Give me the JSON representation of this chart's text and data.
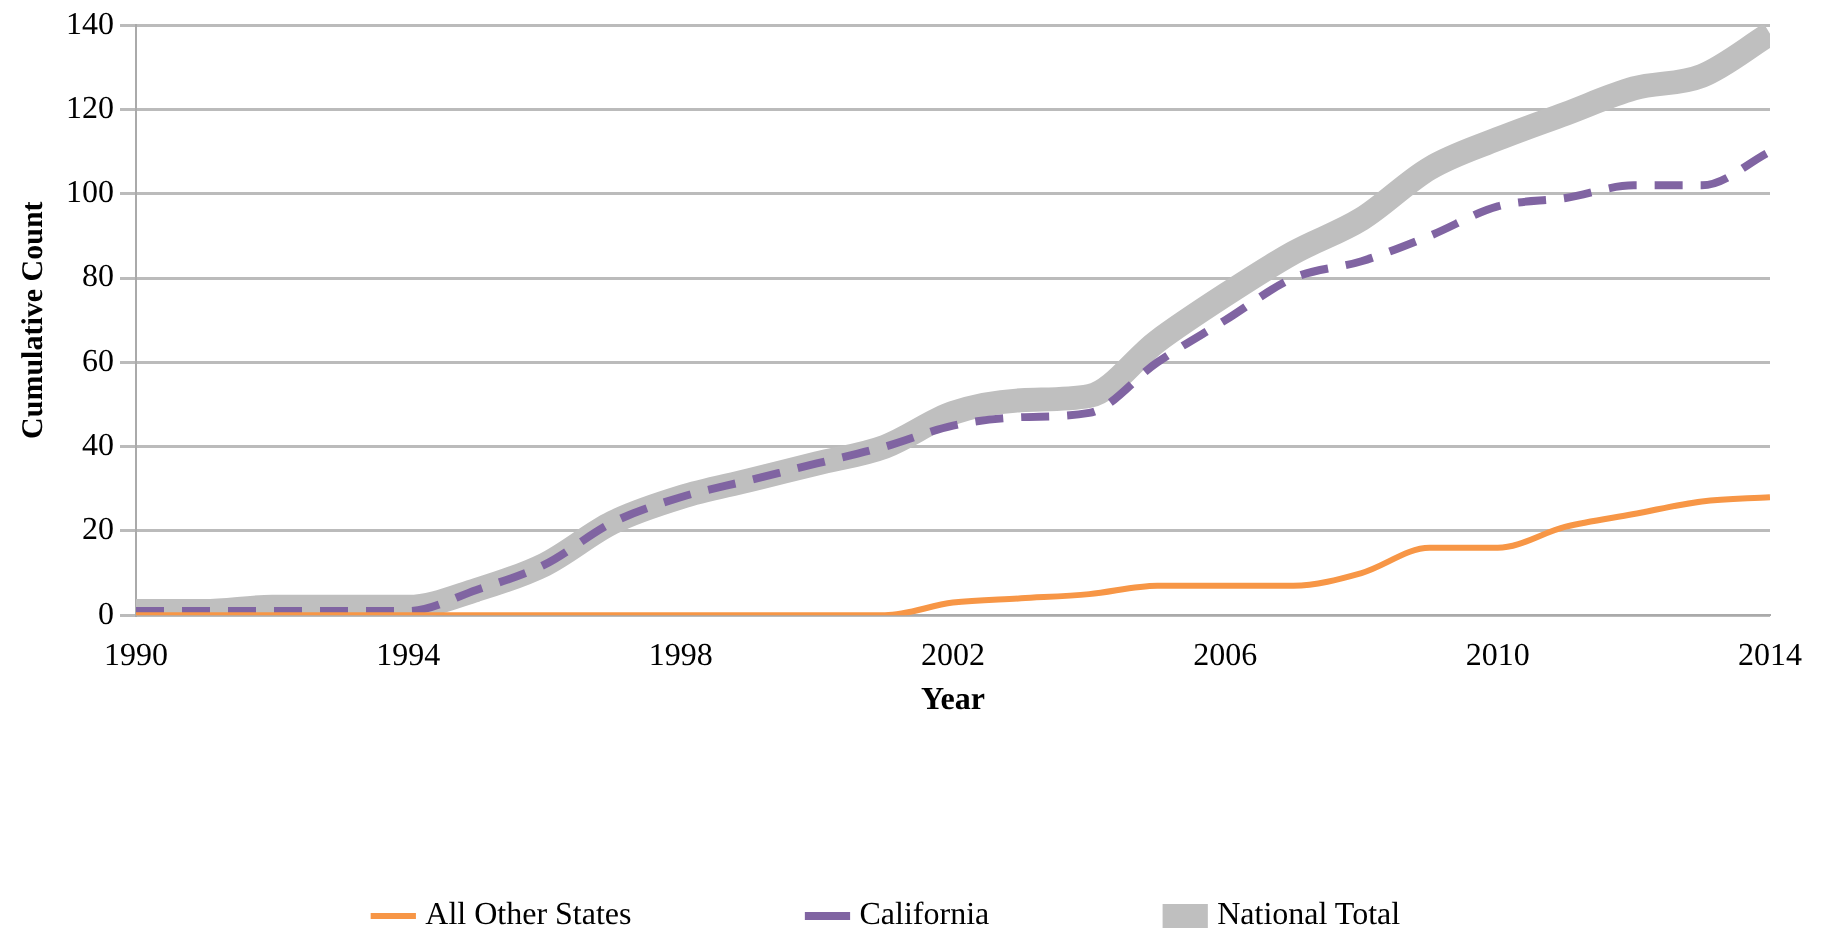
{
  "chart_data": {
    "type": "line",
    "xlabel": "Year",
    "ylabel": "Cumulative Count",
    "x": [
      1990,
      1991,
      1992,
      1993,
      1994,
      1995,
      1996,
      1997,
      1998,
      1999,
      2000,
      2001,
      2002,
      2003,
      2004,
      2005,
      2006,
      2007,
      2008,
      2009,
      2010,
      2011,
      2012,
      2013,
      2014
    ],
    "series": [
      {
        "name": "National Total",
        "color": "#bfbfbf",
        "line_style": "solid",
        "values": [
          1,
          1,
          2,
          2,
          2,
          6,
          12,
          22,
          28,
          32,
          36,
          40,
          48,
          51,
          52,
          65,
          76,
          86,
          94,
          106,
          113,
          119,
          125,
          128,
          138
        ]
      },
      {
        "name": "California",
        "color": "#8064a2",
        "line_style": "dashed",
        "values": [
          1,
          1,
          1,
          1,
          1,
          6,
          12,
          22,
          28,
          32,
          36,
          40,
          45,
          47,
          48,
          60,
          70,
          80,
          84,
          90,
          97,
          99,
          102,
          102,
          110
        ]
      },
      {
        "name": "All Other States",
        "color": "#f79646",
        "line_style": "solid",
        "values": [
          0,
          0,
          0,
          0,
          0,
          0,
          0,
          0,
          0,
          0,
          0,
          0,
          3,
          4,
          5,
          7,
          7,
          7,
          10,
          16,
          16,
          21,
          24,
          27,
          28
        ]
      }
    ],
    "xlim": [
      1990,
      2014
    ],
    "xticks": [
      1990,
      1994,
      1998,
      2002,
      2006,
      2010,
      2014
    ],
    "ylim": [
      0,
      140
    ],
    "yticks": [
      0,
      20,
      40,
      60,
      80,
      100,
      120,
      140
    ],
    "grid": "y",
    "legend": "bottom",
    "marker": "none"
  }
}
